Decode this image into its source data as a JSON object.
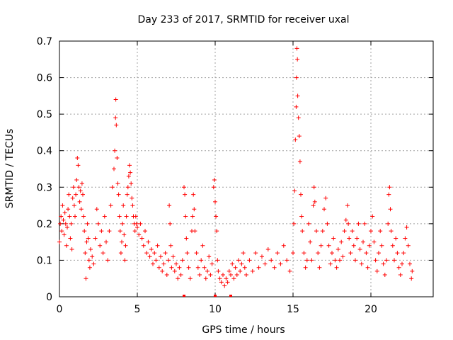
{
  "chart_data": {
    "type": "scatter",
    "title": "Day 233 of 2017, SRMTID for receiver uxal",
    "xlabel": "GPS time / hours",
    "ylabel": "SRMTID / TECUs",
    "xlim": [
      0,
      24
    ],
    "ylim": [
      0,
      0.7
    ],
    "xticks": [
      0,
      5,
      10,
      15,
      20
    ],
    "xtick_labels": [
      "0",
      "5",
      "10",
      "15",
      "20"
    ],
    "yticks": [
      0,
      0.1,
      0.2,
      0.3,
      0.4,
      0.5,
      0.6,
      0.7
    ],
    "ytick_labels": [
      "0",
      "0.1",
      "0.2",
      "0.3",
      "0.4",
      "0.5",
      "0.6",
      "0.7"
    ],
    "grid": true,
    "marker": "+",
    "color": "#ff0000",
    "series": [
      {
        "name": "SRMTID",
        "points": [
          [
            0.0,
            0.15
          ],
          [
            0.05,
            0.2
          ],
          [
            0.1,
            0.22
          ],
          [
            0.15,
            0.18
          ],
          [
            0.2,
            0.25
          ],
          [
            0.25,
            0.21
          ],
          [
            0.3,
            0.17
          ],
          [
            0.35,
            0.23
          ],
          [
            0.4,
            0.2
          ],
          [
            0.45,
            0.14
          ],
          [
            0.5,
            0.19
          ],
          [
            0.55,
            0.24
          ],
          [
            0.6,
            0.28
          ],
          [
            0.65,
            0.22
          ],
          [
            0.7,
            0.16
          ],
          [
            0.75,
            0.2
          ],
          [
            0.8,
            0.13
          ],
          [
            0.85,
            0.27
          ],
          [
            0.9,
            0.3
          ],
          [
            0.95,
            0.25
          ],
          [
            1.0,
            0.22
          ],
          [
            1.05,
            0.28
          ],
          [
            1.1,
            0.32
          ],
          [
            1.15,
            0.38
          ],
          [
            1.2,
            0.36
          ],
          [
            1.25,
            0.3
          ],
          [
            1.3,
            0.26
          ],
          [
            1.35,
            0.29
          ],
          [
            1.4,
            0.24
          ],
          [
            1.45,
            0.31
          ],
          [
            1.5,
            0.28
          ],
          [
            1.55,
            0.22
          ],
          [
            1.6,
            0.18
          ],
          [
            1.65,
            0.12
          ],
          [
            1.7,
            0.05
          ],
          [
            1.75,
            0.15
          ],
          [
            1.8,
            0.2
          ],
          [
            1.85,
            0.16
          ],
          [
            1.9,
            0.1
          ],
          [
            1.95,
            0.08
          ],
          [
            2.0,
            0.13
          ],
          [
            2.1,
            0.11
          ],
          [
            2.2,
            0.09
          ],
          [
            2.3,
            0.16
          ],
          [
            2.4,
            0.24
          ],
          [
            2.5,
            0.2
          ],
          [
            2.6,
            0.14
          ],
          [
            2.7,
            0.18
          ],
          [
            2.8,
            0.12
          ],
          [
            2.9,
            0.22
          ],
          [
            3.0,
            0.15
          ],
          [
            3.1,
            0.1
          ],
          [
            3.2,
            0.18
          ],
          [
            3.3,
            0.25
          ],
          [
            3.4,
            0.3
          ],
          [
            3.5,
            0.35
          ],
          [
            3.55,
            0.4
          ],
          [
            3.6,
            0.49
          ],
          [
            3.62,
            0.54
          ],
          [
            3.65,
            0.47
          ],
          [
            3.7,
            0.38
          ],
          [
            3.75,
            0.31
          ],
          [
            3.8,
            0.28
          ],
          [
            3.85,
            0.22
          ],
          [
            3.9,
            0.18
          ],
          [
            3.95,
            0.12
          ],
          [
            4.0,
            0.15
          ],
          [
            4.05,
            0.2
          ],
          [
            4.1,
            0.25
          ],
          [
            4.15,
            0.17
          ],
          [
            4.2,
            0.1
          ],
          [
            4.25,
            0.14
          ],
          [
            4.3,
            0.22
          ],
          [
            4.35,
            0.28
          ],
          [
            4.4,
            0.3
          ],
          [
            4.45,
            0.33
          ],
          [
            4.5,
            0.36
          ],
          [
            4.55,
            0.34
          ],
          [
            4.6,
            0.31
          ],
          [
            4.65,
            0.27
          ],
          [
            4.7,
            0.25
          ],
          [
            4.75,
            0.22
          ],
          [
            4.8,
            0.2
          ],
          [
            4.85,
            0.18
          ],
          [
            4.9,
            0.22
          ],
          [
            4.95,
            0.2
          ],
          [
            5.0,
            0.19
          ],
          [
            5.1,
            0.17
          ],
          [
            5.2,
            0.2
          ],
          [
            5.3,
            0.16
          ],
          [
            5.4,
            0.14
          ],
          [
            5.5,
            0.18
          ],
          [
            5.6,
            0.12
          ],
          [
            5.7,
            0.15
          ],
          [
            5.8,
            0.11
          ],
          [
            5.9,
            0.13
          ],
          [
            6.0,
            0.09
          ],
          [
            6.1,
            0.12
          ],
          [
            6.2,
            0.1
          ],
          [
            6.3,
            0.14
          ],
          [
            6.4,
            0.08
          ],
          [
            6.5,
            0.11
          ],
          [
            6.6,
            0.07
          ],
          [
            6.7,
            0.09
          ],
          [
            6.8,
            0.12
          ],
          [
            6.9,
            0.06
          ],
          [
            7.0,
            0.1
          ],
          [
            7.05,
            0.25
          ],
          [
            7.1,
            0.2
          ],
          [
            7.15,
            0.14
          ],
          [
            7.2,
            0.08
          ],
          [
            7.3,
            0.11
          ],
          [
            7.4,
            0.07
          ],
          [
            7.5,
            0.09
          ],
          [
            7.6,
            0.05
          ],
          [
            7.7,
            0.08
          ],
          [
            7.8,
            0.06
          ],
          [
            7.9,
            0.1
          ],
          [
            8.0,
            0.3
          ],
          [
            8.05,
            0.28
          ],
          [
            8.1,
            0.22
          ],
          [
            8.15,
            0.16
          ],
          [
            8.2,
            0.12
          ],
          [
            8.3,
            0.08
          ],
          [
            8.4,
            0.05
          ],
          [
            8.5,
            0.18
          ],
          [
            8.55,
            0.22
          ],
          [
            8.6,
            0.28
          ],
          [
            8.65,
            0.24
          ],
          [
            8.7,
            0.18
          ],
          [
            8.8,
            0.12
          ],
          [
            8.9,
            0.08
          ],
          [
            9.0,
            0.06
          ],
          [
            9.1,
            0.1
          ],
          [
            9.2,
            0.14
          ],
          [
            9.3,
            0.08
          ],
          [
            9.4,
            0.05
          ],
          [
            9.5,
            0.07
          ],
          [
            9.6,
            0.11
          ],
          [
            9.7,
            0.06
          ],
          [
            9.8,
            0.09
          ],
          [
            9.9,
            0.3
          ],
          [
            9.95,
            0.32
          ],
          [
            10.0,
            0.26
          ],
          [
            10.05,
            0.22
          ],
          [
            10.1,
            0.18
          ],
          [
            10.15,
            0.1
          ],
          [
            10.2,
            0.07
          ],
          [
            10.3,
            0.05
          ],
          [
            10.4,
            0.04
          ],
          [
            10.5,
            0.06
          ],
          [
            10.6,
            0.03
          ],
          [
            10.7,
            0.05
          ],
          [
            10.8,
            0.04
          ],
          [
            10.9,
            0.07
          ],
          [
            11.0,
            0.06
          ],
          [
            11.1,
            0.09
          ],
          [
            11.2,
            0.05
          ],
          [
            11.3,
            0.08
          ],
          [
            11.4,
            0.06
          ],
          [
            11.5,
            0.1
          ],
          [
            11.6,
            0.07
          ],
          [
            11.7,
            0.09
          ],
          [
            11.8,
            0.12
          ],
          [
            11.9,
            0.08
          ],
          [
            12.0,
            0.06
          ],
          [
            12.2,
            0.1
          ],
          [
            12.4,
            0.07
          ],
          [
            12.6,
            0.12
          ],
          [
            12.8,
            0.08
          ],
          [
            13.0,
            0.11
          ],
          [
            13.2,
            0.09
          ],
          [
            13.4,
            0.13
          ],
          [
            13.6,
            0.1
          ],
          [
            13.8,
            0.08
          ],
          [
            14.0,
            0.12
          ],
          [
            14.2,
            0.09
          ],
          [
            14.4,
            0.14
          ],
          [
            14.6,
            0.1
          ],
          [
            14.8,
            0.07
          ],
          [
            15.0,
            0.12
          ],
          [
            15.05,
            0.2
          ],
          [
            15.1,
            0.29
          ],
          [
            15.15,
            0.43
          ],
          [
            15.2,
            0.52
          ],
          [
            15.22,
            0.6
          ],
          [
            15.25,
            0.68
          ],
          [
            15.28,
            0.65
          ],
          [
            15.3,
            0.55
          ],
          [
            15.35,
            0.49
          ],
          [
            15.4,
            0.44
          ],
          [
            15.45,
            0.37
          ],
          [
            15.5,
            0.28
          ],
          [
            15.55,
            0.22
          ],
          [
            15.6,
            0.18
          ],
          [
            15.7,
            0.12
          ],
          [
            15.8,
            0.08
          ],
          [
            15.9,
            0.1
          ],
          [
            16.0,
            0.2
          ],
          [
            16.1,
            0.15
          ],
          [
            16.2,
            0.1
          ],
          [
            16.3,
            0.25
          ],
          [
            16.35,
            0.3
          ],
          [
            16.4,
            0.26
          ],
          [
            16.5,
            0.18
          ],
          [
            16.6,
            0.12
          ],
          [
            16.7,
            0.08
          ],
          [
            16.8,
            0.14
          ],
          [
            16.9,
            0.18
          ],
          [
            17.0,
            0.24
          ],
          [
            17.1,
            0.27
          ],
          [
            17.2,
            0.2
          ],
          [
            17.3,
            0.14
          ],
          [
            17.4,
            0.09
          ],
          [
            17.5,
            0.12
          ],
          [
            17.6,
            0.16
          ],
          [
            17.7,
            0.1
          ],
          [
            17.8,
            0.08
          ],
          [
            17.9,
            0.13
          ],
          [
            18.0,
            0.1
          ],
          [
            18.1,
            0.15
          ],
          [
            18.2,
            0.11
          ],
          [
            18.3,
            0.18
          ],
          [
            18.4,
            0.21
          ],
          [
            18.5,
            0.25
          ],
          [
            18.55,
            0.2
          ],
          [
            18.6,
            0.16
          ],
          [
            18.7,
            0.12
          ],
          [
            18.8,
            0.18
          ],
          [
            18.9,
            0.14
          ],
          [
            19.0,
            0.1
          ],
          [
            19.1,
            0.16
          ],
          [
            19.2,
            0.2
          ],
          [
            19.3,
            0.13
          ],
          [
            19.4,
            0.09
          ],
          [
            19.5,
            0.15
          ],
          [
            19.6,
            0.2
          ],
          [
            19.7,
            0.12
          ],
          [
            19.8,
            0.08
          ],
          [
            19.9,
            0.14
          ],
          [
            20.0,
            0.18
          ],
          [
            20.1,
            0.22
          ],
          [
            20.2,
            0.15
          ],
          [
            20.3,
            0.1
          ],
          [
            20.4,
            0.07
          ],
          [
            20.5,
            0.12
          ],
          [
            20.6,
            0.18
          ],
          [
            20.7,
            0.14
          ],
          [
            20.8,
            0.09
          ],
          [
            20.9,
            0.06
          ],
          [
            21.0,
            0.1
          ],
          [
            21.1,
            0.2
          ],
          [
            21.15,
            0.28
          ],
          [
            21.2,
            0.3
          ],
          [
            21.25,
            0.24
          ],
          [
            21.3,
            0.18
          ],
          [
            21.4,
            0.14
          ],
          [
            21.5,
            0.1
          ],
          [
            21.6,
            0.16
          ],
          [
            21.7,
            0.12
          ],
          [
            21.8,
            0.08
          ],
          [
            21.9,
            0.06
          ],
          [
            22.0,
            0.09
          ],
          [
            22.1,
            0.12
          ],
          [
            22.2,
            0.16
          ],
          [
            22.3,
            0.19
          ],
          [
            22.4,
            0.14
          ],
          [
            22.5,
            0.09
          ],
          [
            22.6,
            0.05
          ],
          [
            22.65,
            0.07
          ]
        ]
      }
    ],
    "baseline_markers_x": [
      8.0,
      10.0,
      11.0
    ]
  }
}
